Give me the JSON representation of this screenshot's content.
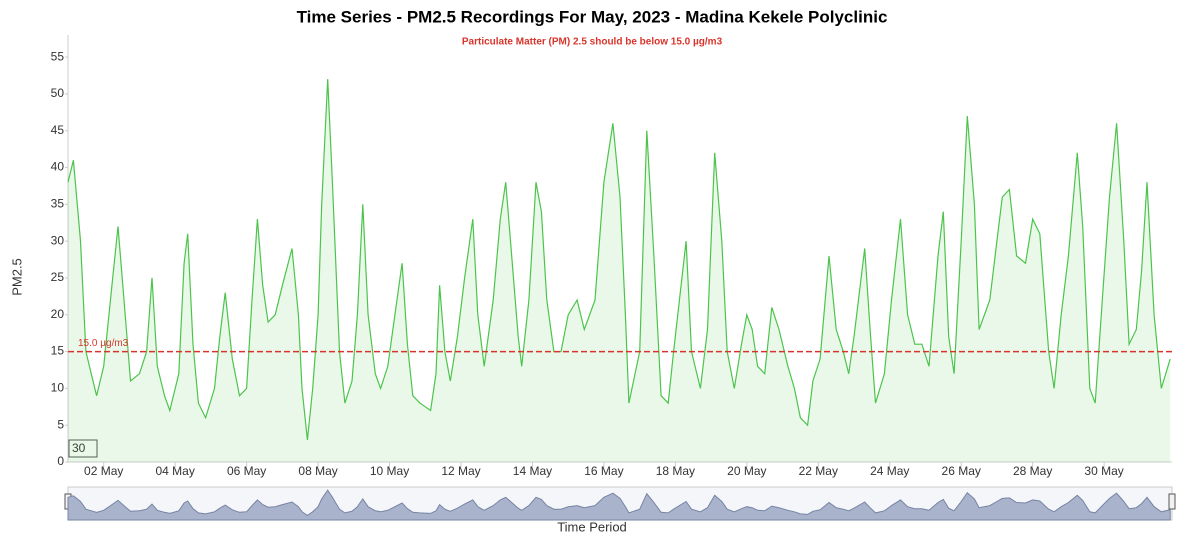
{
  "chart_data": {
    "type": "area",
    "title": "Time Series - PM2.5 Recordings For May, 2023 - Madina Kekele Polyclinic",
    "subtitle": "Particulate Matter (PM) 2.5 should be below 15.0 µg/m3",
    "y_label": "PM2.5",
    "x_label": "Time Period",
    "threshold": 15,
    "threshold_label": "15.0 µg/m3",
    "threshold_color": "#d9342b",
    "range_box": "30",
    "series": [
      {
        "name": "PM2.5",
        "color": "#4cc44c",
        "x": [
          1.0,
          1.15,
          1.35,
          1.5,
          1.7,
          1.8,
          2.0,
          2.25,
          2.4,
          2.6,
          2.75,
          3.0,
          3.2,
          3.35,
          3.5,
          3.7,
          3.85,
          4.1,
          4.25,
          4.35,
          4.5,
          4.65,
          4.85,
          5.1,
          5.25,
          5.4,
          5.6,
          5.8,
          6.0,
          6.15,
          6.3,
          6.45,
          6.6,
          6.8,
          7.0,
          7.27,
          7.45,
          7.55,
          7.7,
          7.85,
          8.0,
          8.1,
          8.27,
          8.4,
          8.6,
          8.75,
          8.95,
          9.1,
          9.25,
          9.4,
          9.6,
          9.75,
          9.95,
          10.15,
          10.35,
          10.5,
          10.65,
          10.85,
          11.15,
          11.3,
          11.4,
          11.55,
          11.7,
          11.9,
          12.1,
          12.33,
          12.47,
          12.65,
          12.9,
          13.1,
          13.25,
          13.42,
          13.6,
          13.7,
          13.9,
          14.1,
          14.25,
          14.4,
          14.6,
          14.8,
          15.0,
          15.25,
          15.45,
          15.75,
          16.0,
          16.25,
          16.45,
          16.6,
          16.7,
          17.0,
          17.2,
          17.4,
          17.6,
          17.8,
          17.95,
          18.3,
          18.45,
          18.7,
          18.9,
          19.1,
          19.3,
          19.45,
          19.65,
          19.85,
          20.0,
          20.15,
          20.3,
          20.5,
          20.7,
          20.9,
          21.15,
          21.33,
          21.5,
          21.7,
          21.85,
          22.05,
          22.3,
          22.5,
          22.7,
          22.85,
          23.0,
          23.3,
          23.45,
          23.6,
          23.85,
          24.05,
          24.3,
          24.5,
          24.7,
          24.9,
          25.1,
          25.35,
          25.5,
          25.65,
          25.8,
          26.0,
          26.17,
          26.37,
          26.5,
          26.8,
          27.0,
          27.15,
          27.35,
          27.55,
          27.8,
          28.0,
          28.2,
          28.45,
          28.6,
          28.8,
          29.0,
          29.25,
          29.4,
          29.6,
          29.75,
          29.95,
          30.15,
          30.35,
          30.55,
          30.7,
          30.9,
          31.05,
          31.2,
          31.4,
          31.6,
          31.85
        ],
        "values": [
          38,
          41,
          30,
          15,
          11,
          9,
          13,
          25,
          32,
          20,
          11,
          12,
          15,
          25,
          13,
          9,
          7,
          12,
          27,
          31,
          16,
          8,
          6,
          10,
          17,
          23,
          14,
          9,
          10,
          22,
          33,
          24,
          19,
          20,
          24,
          29,
          20,
          10,
          3,
          10,
          20,
          35,
          52,
          38,
          15,
          8,
          11,
          20,
          35,
          20,
          12,
          10,
          13,
          20,
          27,
          16,
          9,
          8,
          7,
          12,
          24,
          15,
          11,
          17,
          25,
          33,
          20,
          13,
          22,
          33,
          38,
          28,
          17,
          13,
          22,
          38,
          34,
          22,
          15,
          15,
          20,
          22,
          18,
          22,
          38,
          46,
          36,
          20,
          8,
          15,
          45,
          28,
          9,
          8,
          15,
          30,
          15,
          10,
          18,
          42,
          30,
          15,
          10,
          16,
          20,
          18,
          13,
          12,
          21,
          18,
          13,
          10,
          6,
          5,
          11,
          14,
          28,
          18,
          15,
          12,
          17,
          29,
          18,
          8,
          12,
          22,
          33,
          20,
          16,
          16,
          13,
          28,
          34,
          17,
          12,
          30,
          47,
          35,
          18,
          22,
          30,
          36,
          37,
          28,
          27,
          33,
          31,
          15,
          10,
          20,
          28,
          42,
          32,
          10,
          8,
          22,
          36,
          46,
          30,
          16,
          18,
          26,
          38,
          20,
          10,
          14
        ]
      }
    ],
    "xlim": [
      1,
      31.9
    ],
    "xticks": [
      {
        "value": 2,
        "label": "02 May"
      },
      {
        "value": 4,
        "label": "04 May"
      },
      {
        "value": 6,
        "label": "06 May"
      },
      {
        "value": 8,
        "label": "08 May"
      },
      {
        "value": 10,
        "label": "10 May"
      },
      {
        "value": 12,
        "label": "12 May"
      },
      {
        "value": 14,
        "label": "14 May"
      },
      {
        "value": 16,
        "label": "16 May"
      },
      {
        "value": 18,
        "label": "18 May"
      },
      {
        "value": 20,
        "label": "20 May"
      },
      {
        "value": 22,
        "label": "22 May"
      },
      {
        "value": 24,
        "label": "24 May"
      },
      {
        "value": 26,
        "label": "26 May"
      },
      {
        "value": 28,
        "label": "28 May"
      },
      {
        "value": 30,
        "label": "30 May"
      }
    ],
    "ylim": [
      0,
      58
    ],
    "yticks": [
      0,
      5,
      10,
      15,
      20,
      25,
      30,
      35,
      40,
      45,
      50,
      55
    ]
  }
}
